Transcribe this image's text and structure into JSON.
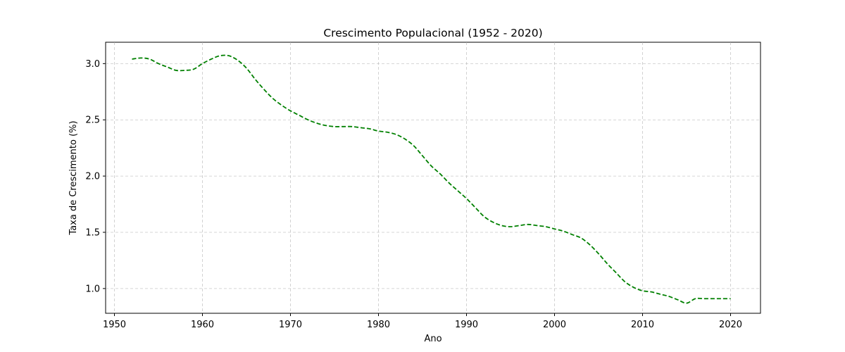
{
  "chart_data": {
    "type": "line",
    "title": "Crescimento Populacional (1952 - 2020)",
    "xlabel": "Ano",
    "ylabel": "Taxa de Crescimento (%)",
    "xlim": [
      1949.0,
      2023.4
    ],
    "ylim": [
      0.78,
      3.19
    ],
    "grid": true,
    "x_ticks": [
      1950,
      1960,
      1970,
      1980,
      1990,
      2000,
      2010,
      2020
    ],
    "x_tick_labels": [
      "1950",
      "1960",
      "1970",
      "1980",
      "1990",
      "2000",
      "2010",
      "2020"
    ],
    "y_ticks": [
      1.0,
      1.5,
      2.0,
      2.5,
      3.0
    ],
    "y_tick_labels": [
      "1.0",
      "1.5",
      "2.0",
      "2.5",
      "3.0"
    ],
    "series": [
      {
        "color": "#008000",
        "line_style": "dashed",
        "x": [
          1952,
          1953,
          1954,
          1955,
          1956,
          1957,
          1958,
          1959,
          1960,
          1961,
          1962,
          1963,
          1964,
          1965,
          1966,
          1967,
          1968,
          1969,
          1970,
          1971,
          1972,
          1973,
          1974,
          1975,
          1976,
          1977,
          1978,
          1979,
          1980,
          1981,
          1982,
          1983,
          1984,
          1985,
          1986,
          1987,
          1988,
          1989,
          1990,
          1991,
          1992,
          1993,
          1994,
          1995,
          1996,
          1997,
          1998,
          1999,
          2000,
          2001,
          2002,
          2003,
          2004,
          2005,
          2006,
          2007,
          2008,
          2009,
          2010,
          2011,
          2012,
          2013,
          2014,
          2015,
          2016,
          2017,
          2018,
          2019,
          2020
        ],
        "y": [
          3.04,
          3.05,
          3.04,
          3.0,
          2.97,
          2.94,
          2.94,
          2.95,
          3.0,
          3.04,
          3.07,
          3.07,
          3.03,
          2.96,
          2.86,
          2.77,
          2.69,
          2.63,
          2.58,
          2.54,
          2.5,
          2.47,
          2.45,
          2.44,
          2.44,
          2.44,
          2.43,
          2.42,
          2.4,
          2.39,
          2.37,
          2.33,
          2.27,
          2.18,
          2.09,
          2.02,
          1.94,
          1.87,
          1.8,
          1.72,
          1.64,
          1.59,
          1.56,
          1.55,
          1.56,
          1.57,
          1.56,
          1.55,
          1.53,
          1.51,
          1.48,
          1.45,
          1.39,
          1.31,
          1.22,
          1.14,
          1.06,
          1.01,
          0.98,
          0.97,
          0.95,
          0.93,
          0.9,
          0.87,
          0.91,
          0.91,
          0.91,
          0.91,
          0.91
        ]
      }
    ]
  }
}
